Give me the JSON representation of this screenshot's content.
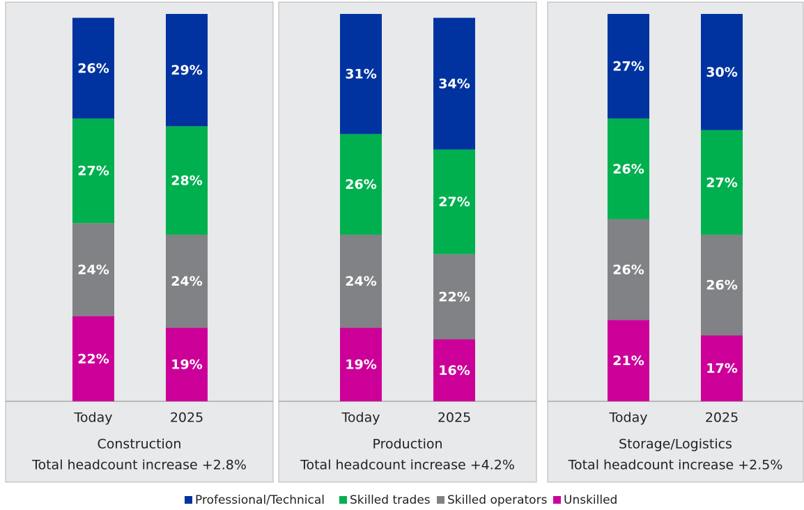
{
  "chart_data": {
    "type": "bar",
    "stacked": true,
    "ylim": [
      0,
      100
    ],
    "legend": "bottom",
    "series": [
      {
        "name": "Professional/Technical",
        "color": "#0033a0"
      },
      {
        "name": "Skilled trades",
        "color": "#00b04f"
      },
      {
        "name": "Skilled operators",
        "color": "#808285"
      },
      {
        "name": "Unskilled",
        "color": "#cc0099"
      }
    ],
    "panels": [
      {
        "title": "Construction",
        "subtitle": "Total headcount increase +2.8%",
        "categories": [
          "Today",
          "2025"
        ],
        "values": [
          [
            26,
            29
          ],
          [
            27,
            28
          ],
          [
            24,
            24
          ],
          [
            22,
            19
          ]
        ],
        "value_labels": [
          [
            "26%",
            "29%"
          ],
          [
            "27%",
            "28%"
          ],
          [
            "24%",
            "24%"
          ],
          [
            "22%",
            "19%"
          ]
        ]
      },
      {
        "title": "Production",
        "subtitle": "Total headcount increase +4.2%",
        "categories": [
          "Today",
          "2025"
        ],
        "values": [
          [
            31,
            34
          ],
          [
            26,
            27
          ],
          [
            24,
            22
          ],
          [
            19,
            16
          ]
        ],
        "value_labels": [
          [
            "31%",
            "34%"
          ],
          [
            "26%",
            "27%"
          ],
          [
            "24%",
            "22%"
          ],
          [
            "19%",
            "16%"
          ]
        ]
      },
      {
        "title": "Storage/Logistics",
        "subtitle": "Total headcount increase +2.5%",
        "categories": [
          "Today",
          "2025"
        ],
        "values": [
          [
            27,
            30
          ],
          [
            26,
            27
          ],
          [
            26,
            26
          ],
          [
            21,
            17
          ]
        ],
        "value_labels": [
          [
            "27%",
            "30%"
          ],
          [
            "26%",
            "27%"
          ],
          [
            "26%",
            "26%"
          ],
          [
            "21%",
            "17%"
          ]
        ]
      }
    ]
  }
}
